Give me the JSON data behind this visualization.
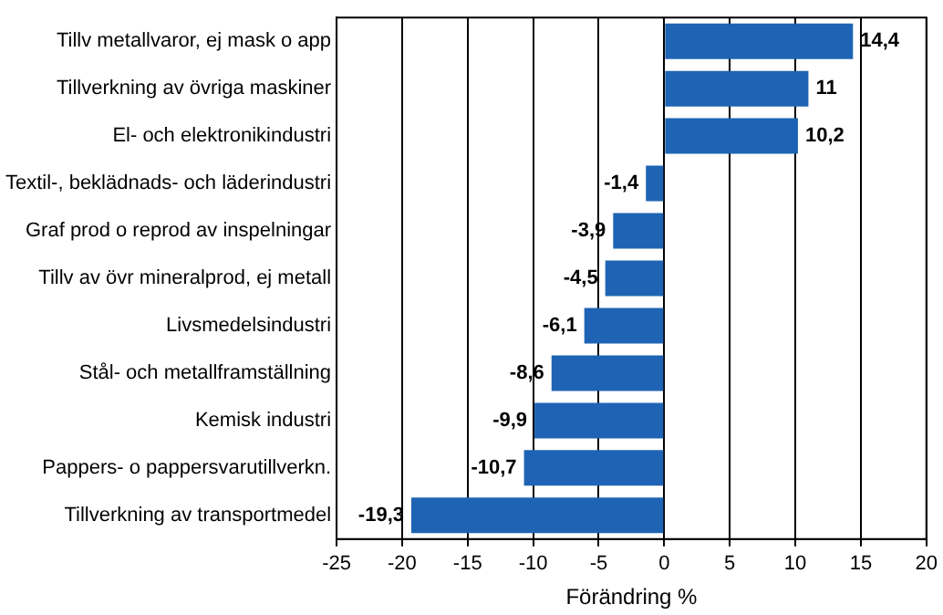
{
  "chart_data": {
    "type": "bar",
    "orientation": "horizontal",
    "xlabel": "Förändring %",
    "categories": [
      "Tillv metallvaror, ej mask o app",
      "Tillverkning av övriga maskiner",
      "El- och elektronikindustri",
      "Textil-, beklädnads- och läderindustri",
      "Graf prod o reprod av inspelningar",
      "Tillv av övr mineralprod, ej metall",
      "Livsmedelsindustri",
      "Stål- och metallframställning",
      "Kemisk industri",
      "Pappers- o pappersvarutillverkn.",
      "Tillverkning av transportmedel"
    ],
    "values": [
      14.4,
      11,
      10.2,
      -1.4,
      -3.9,
      -4.5,
      -6.1,
      -8.6,
      -9.9,
      -10.7,
      -19.3
    ],
    "value_labels": [
      "14,4",
      "11",
      "10,2",
      "-1,4",
      "-3,9",
      "-4,5",
      "-6,1",
      "-8,6",
      "-9,9",
      "-10,7",
      "-19,3"
    ],
    "color": "#1f64b4",
    "xlim": [
      -25,
      20
    ],
    "xticks": [
      -25,
      -20,
      -15,
      -10,
      -5,
      0,
      5,
      10,
      15,
      20
    ],
    "grid": "x",
    "legend": false
  }
}
